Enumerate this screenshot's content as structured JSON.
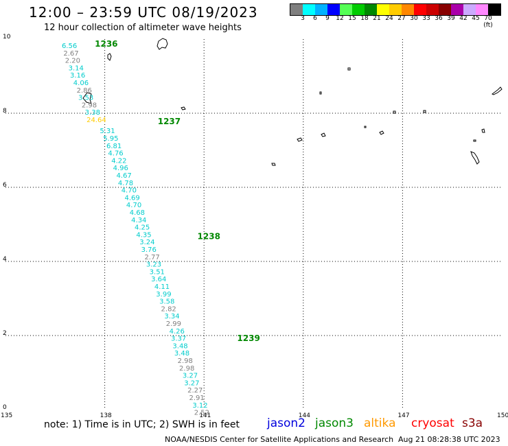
{
  "header": {
    "title": "12:00 – 23:59 UTC 08/19/2023",
    "subtitle": "12 hour collection of altimeter wave heights"
  },
  "colorbar": {
    "colors": [
      "#7f7f7f",
      "#00ffff",
      "#00b2ff",
      "#0000ff",
      "#55ff55",
      "#00cc00",
      "#008800",
      "#ffff00",
      "#ffcc00",
      "#ff8800",
      "#ff0000",
      "#cc0000",
      "#880000",
      "#aa00aa",
      "#ccaaff",
      "#ff88ff",
      "#000000"
    ],
    "labels": [
      "3",
      "6",
      "9",
      "12",
      "15",
      "18",
      "21",
      "24",
      "27",
      "30",
      "33",
      "36",
      "39",
      "42",
      "45",
      "70 (ft)"
    ]
  },
  "axes": {
    "y_ticks": [
      "10",
      "8",
      "6",
      "4",
      "2",
      "0"
    ],
    "x_ticks": [
      "135",
      "138",
      "141",
      "144",
      "147",
      "150"
    ]
  },
  "chart_data": {
    "type": "scatter",
    "x_range": [
      135,
      150
    ],
    "y_range": [
      0,
      10
    ],
    "pass_labels": [
      {
        "label": "1236",
        "lon": 137.7,
        "lat": 9.8
      },
      {
        "label": "1237",
        "lon": 139.6,
        "lat": 7.7
      },
      {
        "label": "1238",
        "lon": 140.8,
        "lat": 4.6
      },
      {
        "label": "1239",
        "lon": 142.0,
        "lat": 1.85
      }
    ],
    "points": [
      {
        "v": "6.56",
        "lon": 136.7,
        "lat": 9.76,
        "c": "#00cccc"
      },
      {
        "v": "2.67",
        "lon": 136.75,
        "lat": 9.56,
        "c": "#7f7f7f"
      },
      {
        "v": "2.20",
        "lon": 136.8,
        "lat": 9.36,
        "c": "#7f7f7f"
      },
      {
        "v": "3.14",
        "lon": 136.9,
        "lat": 9.16,
        "c": "#00cccc"
      },
      {
        "v": "3.16",
        "lon": 136.95,
        "lat": 8.96,
        "c": "#00cccc"
      },
      {
        "v": "4.06",
        "lon": 137.05,
        "lat": 8.76,
        "c": "#00cccc"
      },
      {
        "v": "2.86",
        "lon": 137.15,
        "lat": 8.56,
        "c": "#7f7f7f"
      },
      {
        "v": "3.53",
        "lon": 137.2,
        "lat": 8.36,
        "c": "#00cccc"
      },
      {
        "v": "2.98",
        "lon": 137.3,
        "lat": 8.16,
        "c": "#7f7f7f"
      },
      {
        "v": "3.38",
        "lon": 137.4,
        "lat": 7.96,
        "c": "#00cccc"
      },
      {
        "v": "24.64",
        "lon": 137.45,
        "lat": 7.76,
        "c": "#ffcc00"
      },
      {
        "v": "5.31",
        "lon": 137.85,
        "lat": 7.46,
        "c": "#00cccc"
      },
      {
        "v": "5.95",
        "lon": 137.95,
        "lat": 7.26,
        "c": "#00cccc"
      },
      {
        "v": "6.81",
        "lon": 138.05,
        "lat": 7.06,
        "c": "#00cccc"
      },
      {
        "v": "4.76",
        "lon": 138.1,
        "lat": 6.86,
        "c": "#00cccc"
      },
      {
        "v": "4.22",
        "lon": 138.2,
        "lat": 6.66,
        "c": "#00cccc"
      },
      {
        "v": "4.96",
        "lon": 138.25,
        "lat": 6.46,
        "c": "#00cccc"
      },
      {
        "v": "4.67",
        "lon": 138.35,
        "lat": 6.26,
        "c": "#00cccc"
      },
      {
        "v": "4.78",
        "lon": 138.4,
        "lat": 6.06,
        "c": "#00cccc"
      },
      {
        "v": "4.70",
        "lon": 138.5,
        "lat": 5.86,
        "c": "#00cccc"
      },
      {
        "v": "4.69",
        "lon": 138.6,
        "lat": 5.66,
        "c": "#00cccc"
      },
      {
        "v": "4.70",
        "lon": 138.65,
        "lat": 5.46,
        "c": "#00cccc"
      },
      {
        "v": "4.68",
        "lon": 138.75,
        "lat": 5.26,
        "c": "#00cccc"
      },
      {
        "v": "4.34",
        "lon": 138.8,
        "lat": 5.06,
        "c": "#00cccc"
      },
      {
        "v": "4.25",
        "lon": 138.9,
        "lat": 4.86,
        "c": "#00cccc"
      },
      {
        "v": "4.35",
        "lon": 138.95,
        "lat": 4.66,
        "c": "#00cccc"
      },
      {
        "v": "3.24",
        "lon": 139.05,
        "lat": 4.46,
        "c": "#00cccc"
      },
      {
        "v": "3.76",
        "lon": 139.1,
        "lat": 4.26,
        "c": "#00cccc"
      },
      {
        "v": "2.77",
        "lon": 139.2,
        "lat": 4.06,
        "c": "#7f7f7f"
      },
      {
        "v": "3.23",
        "lon": 139.25,
        "lat": 3.86,
        "c": "#00cccc"
      },
      {
        "v": "3.51",
        "lon": 139.35,
        "lat": 3.66,
        "c": "#00cccc"
      },
      {
        "v": "3.64",
        "lon": 139.4,
        "lat": 3.46,
        "c": "#00cccc"
      },
      {
        "v": "4.11",
        "lon": 139.5,
        "lat": 3.26,
        "c": "#00cccc"
      },
      {
        "v": "3.99",
        "lon": 139.55,
        "lat": 3.06,
        "c": "#00cccc"
      },
      {
        "v": "3.58",
        "lon": 139.65,
        "lat": 2.86,
        "c": "#00cccc"
      },
      {
        "v": "2.82",
        "lon": 139.7,
        "lat": 2.66,
        "c": "#7f7f7f"
      },
      {
        "v": "3.34",
        "lon": 139.8,
        "lat": 2.46,
        "c": "#00cccc"
      },
      {
        "v": "2.99",
        "lon": 139.85,
        "lat": 2.26,
        "c": "#7f7f7f"
      },
      {
        "v": "4.26",
        "lon": 139.95,
        "lat": 2.06,
        "c": "#00cccc"
      },
      {
        "v": "3.37",
        "lon": 140.0,
        "lat": 1.86,
        "c": "#00cccc"
      },
      {
        "v": "3.48",
        "lon": 140.05,
        "lat": 1.66,
        "c": "#00cccc"
      },
      {
        "v": "3.48",
        "lon": 140.1,
        "lat": 1.46,
        "c": "#00cccc"
      },
      {
        "v": "2.98",
        "lon": 140.2,
        "lat": 1.26,
        "c": "#7f7f7f"
      },
      {
        "v": "2.98",
        "lon": 140.25,
        "lat": 1.06,
        "c": "#7f7f7f"
      },
      {
        "v": "3.27",
        "lon": 140.35,
        "lat": 0.86,
        "c": "#00cccc"
      },
      {
        "v": "3.27",
        "lon": 140.4,
        "lat": 0.66,
        "c": "#00cccc"
      },
      {
        "v": "2.27",
        "lon": 140.5,
        "lat": 0.46,
        "c": "#7f7f7f"
      },
      {
        "v": "2.91",
        "lon": 140.55,
        "lat": 0.26,
        "c": "#7f7f7f"
      },
      {
        "v": "3.12",
        "lon": 140.65,
        "lat": 0.06,
        "c": "#00cccc"
      },
      {
        "v": "2.52",
        "lon": 140.7,
        "lat": -0.14,
        "c": "#7f7f7f"
      }
    ]
  },
  "note": "note:  1) Time is in UTC; 2) SWH is in feet",
  "satellites": [
    {
      "name": "jason2",
      "color": "#0000dd"
    },
    {
      "name": "jason3",
      "color": "#008800"
    },
    {
      "name": "altika",
      "color": "#ff9900"
    },
    {
      "name": "cryosat",
      "color": "#ff0000"
    },
    {
      "name": "s3a",
      "color": "#880000"
    }
  ],
  "footer": {
    "left": "NOAA/NESDIS Center for Satellite Applications and Research",
    "right": "Aug 21 08:28:38 UTC 2023"
  }
}
